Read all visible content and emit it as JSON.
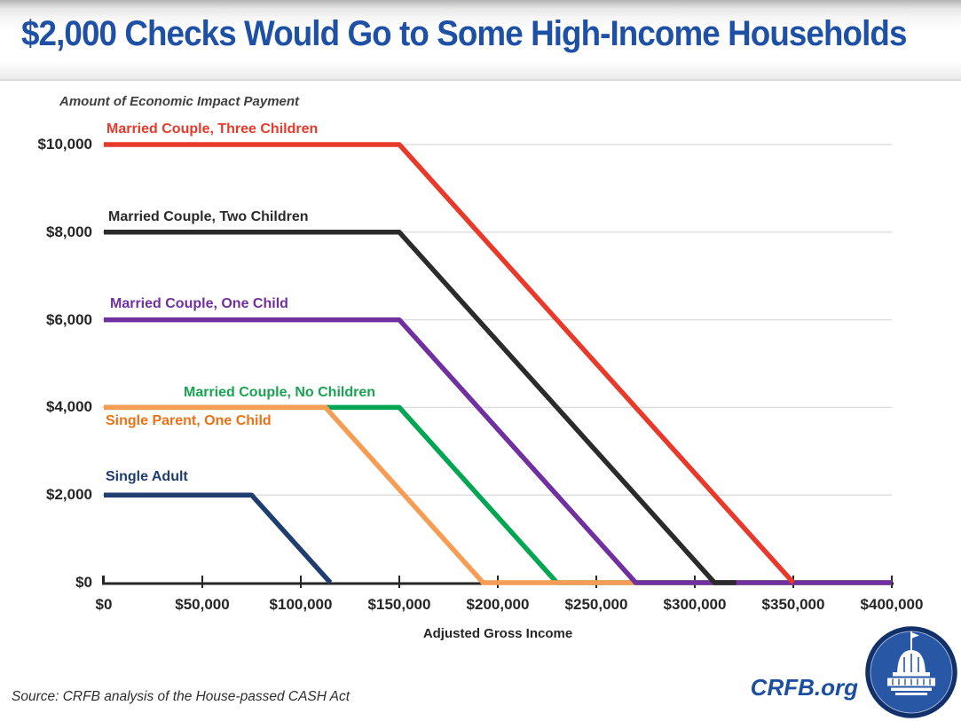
{
  "header": {
    "title": "$2,000 Checks Would Go to Some High-Income Households"
  },
  "footer": {
    "source": "Source: CRFB analysis of the House-passed CASH Act",
    "site": "CRFB.org",
    "logo": "capitol-dome-logo"
  },
  "colors": {
    "title_blue": "#1e50a5",
    "axis": "#262626",
    "gridline": "#dbdbdb",
    "logo_ring": "#12306a",
    "logo_fill": "#2757a5"
  },
  "chart_data": {
    "type": "line",
    "title": "$2,000 Checks Would Go to Some High-Income Households",
    "xlabel": "Adjusted Gross Income",
    "ylabel": "Amount of Economic Impact Payment",
    "xlim": [
      0,
      400000
    ],
    "ylim": [
      0,
      10000
    ],
    "grid": "horizontal",
    "legend_position": "inline-labels",
    "x_ticks": [
      {
        "value": 0,
        "label": "$0"
      },
      {
        "value": 50000,
        "label": "$50,000"
      },
      {
        "value": 100000,
        "label": "$100,000"
      },
      {
        "value": 150000,
        "label": "$150,000"
      },
      {
        "value": 200000,
        "label": "$200,000"
      },
      {
        "value": 250000,
        "label": "$250,000"
      },
      {
        "value": 300000,
        "label": "$300,000"
      },
      {
        "value": 350000,
        "label": "$350,000"
      },
      {
        "value": 400000,
        "label": "$400,000"
      }
    ],
    "y_ticks": [
      {
        "value": 0,
        "label": "$0"
      },
      {
        "value": 2000,
        "label": "$2,000"
      },
      {
        "value": 4000,
        "label": "$4,000"
      },
      {
        "value": 6000,
        "label": "$6,000"
      },
      {
        "value": 8000,
        "label": "$8,000"
      },
      {
        "value": 10000,
        "label": "$10,000"
      }
    ],
    "series": [
      {
        "id": "married-no-children",
        "name": "Married Couple, No Children",
        "color": "#00a651",
        "label_color": "#19a352",
        "points": [
          [
            0,
            4000
          ],
          [
            150000,
            4000
          ],
          [
            230000,
            0
          ],
          [
            400000,
            0
          ]
        ]
      },
      {
        "id": "single-parent-one-child",
        "name": "Single Parent, One Child",
        "color": "#f79c55",
        "label_color": "#ee7017",
        "points": [
          [
            0,
            4000
          ],
          [
            112500,
            4000
          ],
          [
            192500,
            0
          ],
          [
            400000,
            0
          ]
        ]
      },
      {
        "id": "married-one-child",
        "name": "Married Couple, One Child",
        "color": "#7030a0",
        "label_color": "#7030a0",
        "points": [
          [
            0,
            6000
          ],
          [
            150000,
            6000
          ],
          [
            270000,
            0
          ],
          [
            400000,
            0
          ]
        ]
      },
      {
        "id": "single-adult",
        "name": "Single Adult",
        "color": "#1f3d6e",
        "label_color": "#1f3d6e",
        "points": [
          [
            0,
            2000
          ],
          [
            75000,
            2000
          ],
          [
            115000,
            0
          ]
        ]
      },
      {
        "id": "married-two-children",
        "name": "Married Couple, Two Children",
        "color": "#2b2b2b",
        "label_color": "#2b2b2b",
        "points": [
          [
            0,
            8000
          ],
          [
            150000,
            8000
          ],
          [
            310000,
            0
          ],
          [
            321000,
            0
          ]
        ]
      },
      {
        "id": "married-three-children",
        "name": "Married Couple, Three Children",
        "color": "#e8392b",
        "label_color": "#e8392b",
        "points": [
          [
            0,
            10000
          ],
          [
            150000,
            10000
          ],
          [
            350000,
            0
          ]
        ]
      }
    ]
  }
}
